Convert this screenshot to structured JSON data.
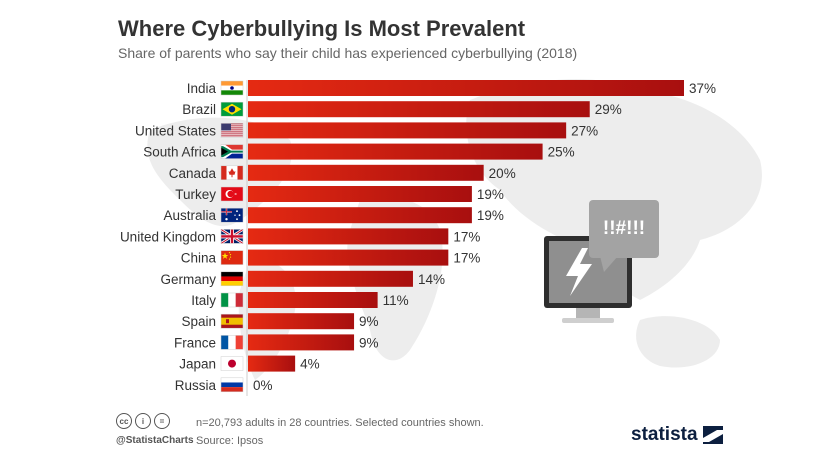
{
  "header": {
    "title": "Where Cyberbullying Is Most Prevalent",
    "subtitle": "Share of parents who say their child has experienced cyberbullying (2018)"
  },
  "illustration": {
    "speech_bubble_text": "!!#!!!"
  },
  "footer": {
    "cc_icons": [
      "cc-icon",
      "person-icon",
      "equals-icon"
    ],
    "cc_glyphs": [
      "cc",
      "i",
      "="
    ],
    "handle": "@StatistaCharts",
    "note": "n=20,793 adults in 28 countries. Selected countries shown.",
    "source": "Source: Ipsos",
    "brand": "statista"
  },
  "colors": {
    "bar_light": "#e52a12",
    "bar_dark": "#a80f0f",
    "text": "#333333",
    "brand": "#0c1f3f"
  },
  "chart_data": {
    "type": "bar",
    "orientation": "horizontal",
    "title": "Where Cyberbullying Is Most Prevalent",
    "subtitle": "Share of parents who say their child has experienced cyberbullying (2018)",
    "xlabel": "",
    "ylabel": "",
    "xlim": [
      0,
      37
    ],
    "categories": [
      "India",
      "Brazil",
      "United States",
      "South Africa",
      "Canada",
      "Turkey",
      "Australia",
      "United Kingdom",
      "China",
      "Germany",
      "Italy",
      "Spain",
      "France",
      "Japan",
      "Russia"
    ],
    "flags": [
      "india-flag-icon",
      "brazil-flag-icon",
      "usa-flag-icon",
      "south-africa-flag-icon",
      "canada-flag-icon",
      "turkey-flag-icon",
      "australia-flag-icon",
      "uk-flag-icon",
      "china-flag-icon",
      "germany-flag-icon",
      "italy-flag-icon",
      "spain-flag-icon",
      "france-flag-icon",
      "japan-flag-icon",
      "russia-flag-icon"
    ],
    "values": [
      37,
      29,
      27,
      25,
      20,
      19,
      19,
      17,
      17,
      14,
      11,
      9,
      9,
      4,
      0
    ],
    "value_labels": [
      "37%",
      "29%",
      "27%",
      "25%",
      "20%",
      "19%",
      "19%",
      "17%",
      "17%",
      "14%",
      "11%",
      "9%",
      "9%",
      "4%",
      "0%"
    ]
  }
}
